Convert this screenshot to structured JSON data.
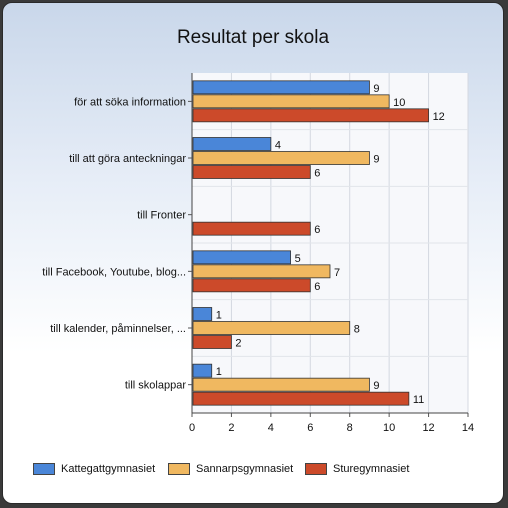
{
  "chart_data": {
    "type": "bar",
    "orientation": "horizontal",
    "title": "Resultat per skola",
    "categories": [
      "för att söka information",
      "till att göra anteckningar",
      "till Fronter",
      "till Facebook, Youtube, blog...",
      "till kalender, påminnelser, ...",
      "till skolappar"
    ],
    "series": [
      {
        "name": "Kattegattgymnasiet",
        "color": "#4a86d8",
        "values": [
          9,
          4,
          null,
          5,
          1,
          1
        ]
      },
      {
        "name": "Sannarpsgymnasiet",
        "color": "#f0b860",
        "values": [
          10,
          9,
          null,
          7,
          8,
          9
        ]
      },
      {
        "name": "Sturegymnasiet",
        "color": "#cc4a2a",
        "values": [
          12,
          6,
          6,
          6,
          2,
          11
        ]
      }
    ],
    "xlim": [
      0,
      14
    ],
    "xticks": [
      0,
      2,
      4,
      6,
      8,
      10,
      12,
      14
    ],
    "grid": true,
    "legend": "bottom"
  }
}
